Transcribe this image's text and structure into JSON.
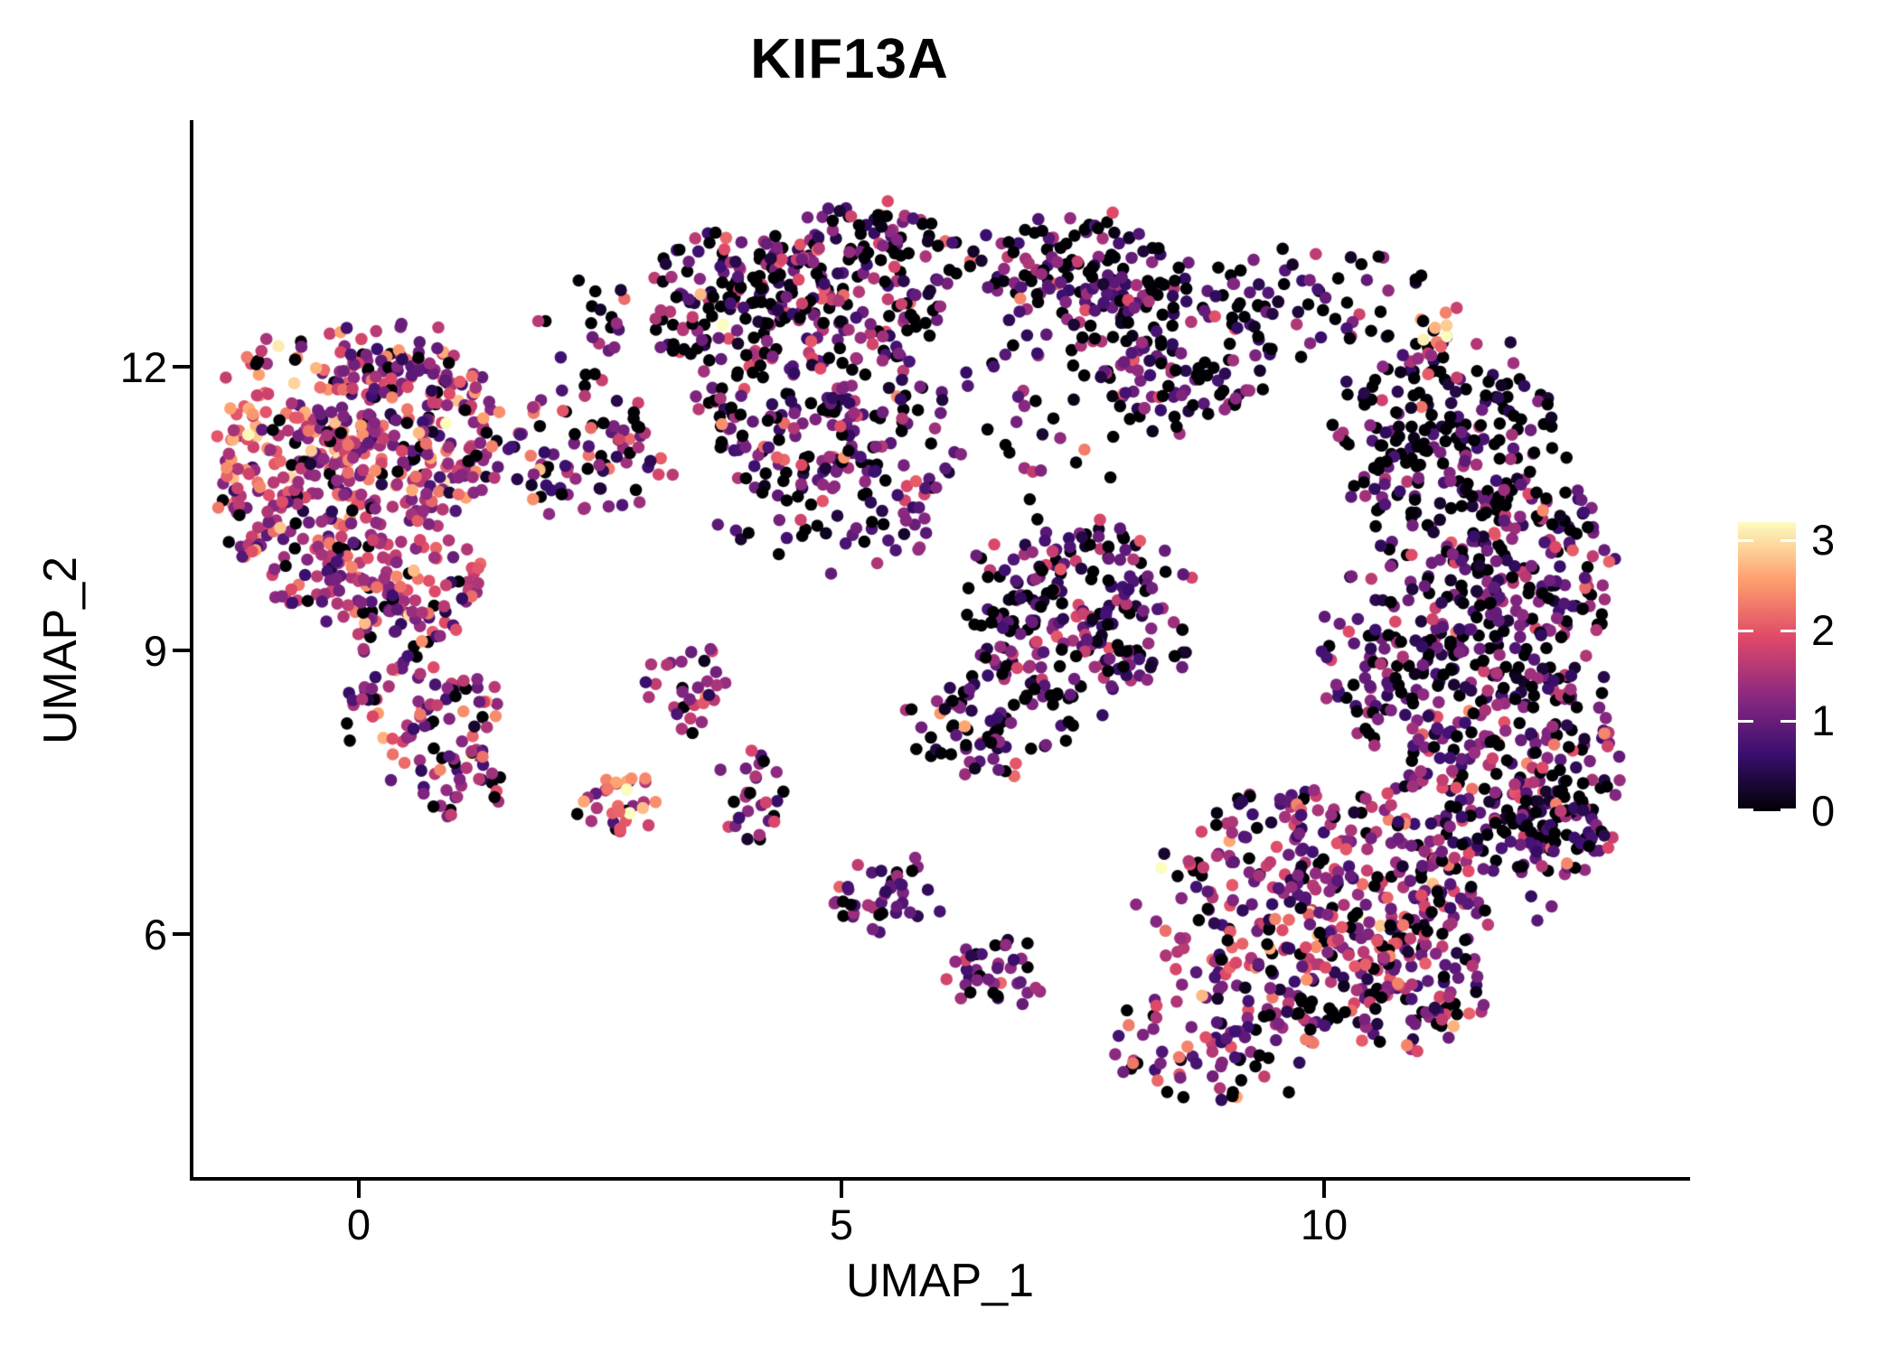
{
  "chart_data": {
    "type": "scatter",
    "title": "KIF13A",
    "xlabel": "UMAP_1",
    "ylabel": "UMAP_2",
    "x_ticks": [
      0,
      5,
      10
    ],
    "y_ticks": [
      6,
      9,
      12
    ],
    "xlim": [
      -1.73,
      13.77
    ],
    "ylim": [
      3.41,
      14.6
    ],
    "grid": false,
    "legend_position": "right",
    "point_radius_px": 6.8,
    "seed": 42,
    "colorbar": {
      "title": "",
      "ticks": [
        0,
        1,
        2,
        3
      ],
      "min": 0,
      "max": 3.2,
      "colormap": "magma",
      "stops": [
        "#000004",
        "#3b0f70",
        "#8c2981",
        "#de4968",
        "#fe9f6d",
        "#fcfdbf"
      ]
    },
    "clusters": [
      {
        "x": -0.72,
        "y": 10.57,
        "rx": 0.75,
        "ry": 1.1,
        "n": 170,
        "p0": 0.1,
        "mean": 1.55,
        "sd": 0.65
      },
      {
        "x": 0.5,
        "y": 11.29,
        "rx": 1.03,
        "ry": 0.91,
        "n": 260,
        "p0": 0.1,
        "mean": 1.5,
        "sd": 0.65
      },
      {
        "x": 0.31,
        "y": 9.76,
        "rx": 0.94,
        "ry": 0.76,
        "n": 150,
        "p0": 0.12,
        "mean": 1.5,
        "sd": 0.6
      },
      {
        "x": 0.68,
        "y": 8.33,
        "rx": 0.84,
        "ry": 0.72,
        "n": 85,
        "p0": 0.15,
        "mean": 1.4,
        "sd": 0.6
      },
      {
        "x": 1.06,
        "y": 7.57,
        "rx": 0.42,
        "ry": 0.43,
        "n": 28,
        "p0": 0.15,
        "mean": 1.3,
        "sd": 0.6
      },
      {
        "x": 2.68,
        "y": 7.38,
        "rx": 0.42,
        "ry": 0.38,
        "n": 32,
        "p0": 0.08,
        "mean": 1.9,
        "sd": 0.55
      },
      {
        "x": 2.37,
        "y": 11.1,
        "rx": 0.84,
        "ry": 0.86,
        "n": 85,
        "p0": 0.2,
        "mean": 1.2,
        "sd": 0.6
      },
      {
        "x": 3.77,
        "y": 12.72,
        "rx": 0.84,
        "ry": 0.76,
        "n": 130,
        "p0": 0.28,
        "mean": 1.05,
        "sd": 0.6
      },
      {
        "x": 5.18,
        "y": 13.01,
        "rx": 1.03,
        "ry": 0.76,
        "n": 170,
        "p0": 0.3,
        "mean": 1.0,
        "sd": 0.6
      },
      {
        "x": 4.71,
        "y": 11.58,
        "rx": 1.12,
        "ry": 0.86,
        "n": 150,
        "p0": 0.28,
        "mean": 1.05,
        "sd": 0.6
      },
      {
        "x": 4.9,
        "y": 10.53,
        "rx": 1.22,
        "ry": 0.67,
        "n": 70,
        "p0": 0.3,
        "mean": 1.0,
        "sd": 0.6
      },
      {
        "x": 7.33,
        "y": 13.01,
        "rx": 1.03,
        "ry": 0.67,
        "n": 125,
        "p0": 0.32,
        "mean": 0.95,
        "sd": 0.6
      },
      {
        "x": 8.45,
        "y": 12.25,
        "rx": 1.12,
        "ry": 0.86,
        "n": 140,
        "p0": 0.38,
        "mean": 0.85,
        "sd": 0.6
      },
      {
        "x": 11.17,
        "y": 12.49,
        "rx": 0.28,
        "ry": 0.27,
        "n": 9,
        "p0": 0.1,
        "mean": 2.6,
        "sd": 0.45
      },
      {
        "x": 9.86,
        "y": 12.72,
        "rx": 1.12,
        "ry": 0.67,
        "n": 55,
        "p0": 0.4,
        "mean": 0.8,
        "sd": 0.55
      },
      {
        "x": 11.26,
        "y": 11.29,
        "rx": 1.22,
        "ry": 1.05,
        "n": 220,
        "p0": 0.42,
        "mean": 0.75,
        "sd": 0.6
      },
      {
        "x": 12.2,
        "y": 9.67,
        "rx": 0.84,
        "ry": 1.24,
        "n": 180,
        "p0": 0.3,
        "mean": 0.95,
        "sd": 0.6
      },
      {
        "x": 11.08,
        "y": 9.0,
        "rx": 1.12,
        "ry": 1.15,
        "n": 200,
        "p0": 0.3,
        "mean": 1.0,
        "sd": 0.6
      },
      {
        "x": 7.43,
        "y": 9.38,
        "rx": 1.22,
        "ry": 0.96,
        "n": 230,
        "p0": 0.32,
        "mean": 0.95,
        "sd": 0.6
      },
      {
        "x": 6.58,
        "y": 8.23,
        "rx": 0.94,
        "ry": 0.57,
        "n": 75,
        "p0": 0.3,
        "mean": 0.95,
        "sd": 0.6
      },
      {
        "x": 9.86,
        "y": 6.32,
        "rx": 1.59,
        "ry": 1.24,
        "n": 330,
        "p0": 0.15,
        "mean": 1.35,
        "sd": 0.65
      },
      {
        "x": 11.73,
        "y": 7.28,
        "rx": 1.12,
        "ry": 1.15,
        "n": 200,
        "p0": 0.22,
        "mean": 1.1,
        "sd": 0.65
      },
      {
        "x": 5.46,
        "y": 6.42,
        "rx": 0.56,
        "ry": 0.43,
        "n": 42,
        "p0": 0.25,
        "mean": 1.1,
        "sd": 0.6
      },
      {
        "x": 6.58,
        "y": 5.56,
        "rx": 0.51,
        "ry": 0.43,
        "n": 38,
        "p0": 0.25,
        "mean": 1.15,
        "sd": 0.6
      },
      {
        "x": 4.05,
        "y": 7.47,
        "rx": 0.37,
        "ry": 0.48,
        "n": 28,
        "p0": 0.2,
        "mean": 1.3,
        "sd": 0.6
      },
      {
        "x": 3.4,
        "y": 8.62,
        "rx": 0.42,
        "ry": 0.52,
        "n": 32,
        "p0": 0.2,
        "mean": 1.3,
        "sd": 0.6
      },
      {
        "x": 6.58,
        "y": 11.58,
        "rx": 2.06,
        "ry": 0.96,
        "n": 85,
        "p0": 0.38,
        "mean": 0.85,
        "sd": 0.6
      },
      {
        "x": 12.48,
        "y": 7.76,
        "rx": 0.66,
        "ry": 1.15,
        "n": 110,
        "p0": 0.3,
        "mean": 1.0,
        "sd": 0.6
      },
      {
        "x": 8.92,
        "y": 4.89,
        "rx": 1.12,
        "ry": 0.67,
        "n": 90,
        "p0": 0.2,
        "mean": 1.2,
        "sd": 0.6
      },
      {
        "x": 0.03,
        "y": 12.1,
        "rx": 1.12,
        "ry": 0.38,
        "n": 60,
        "p0": 0.15,
        "mean": 1.4,
        "sd": 0.6
      },
      {
        "x": -1.19,
        "y": 11.58,
        "rx": 0.33,
        "ry": 0.57,
        "n": 25,
        "p0": 0.05,
        "mean": 2.2,
        "sd": 0.5
      },
      {
        "x": 10.8,
        "y": 5.56,
        "rx": 0.94,
        "ry": 0.76,
        "n": 110,
        "p0": 0.2,
        "mean": 1.2,
        "sd": 0.6
      },
      {
        "x": 2.28,
        "y": 12.53,
        "rx": 0.56,
        "ry": 0.48,
        "n": 18,
        "p0": 0.25,
        "mean": 1.1,
        "sd": 0.6
      }
    ]
  }
}
